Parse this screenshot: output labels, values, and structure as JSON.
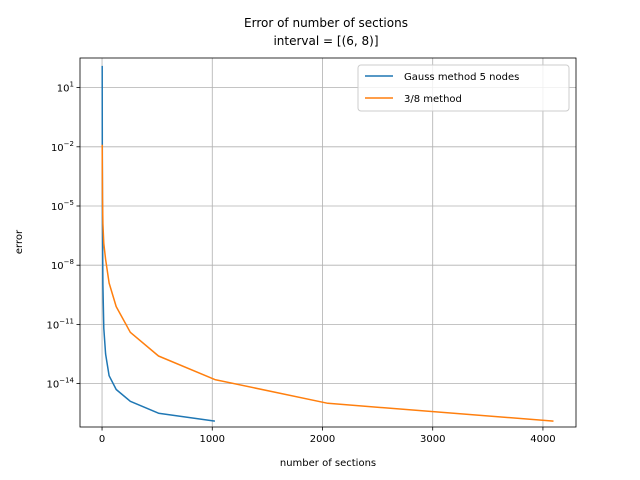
{
  "chart_data": {
    "type": "line",
    "title": "Error of number of sections",
    "subtitle": "interval = [(6, 8)]",
    "xlabel": "number of sections",
    "ylabel": "error",
    "xlim": [
      -200,
      4300
    ],
    "ylim_log10": [
      -16.2,
      2.5
    ],
    "yscale": "log",
    "grid": true,
    "legend_position": "top-right",
    "x_ticks": [
      0,
      1000,
      2000,
      3000,
      4000
    ],
    "x_tick_labels": [
      "0",
      "1000",
      "2000",
      "3000",
      "4000"
    ],
    "y_ticks_log10": [
      1,
      -2,
      -5,
      -8,
      -11,
      -14
    ],
    "y_tick_labels": [
      {
        "base": "10",
        "exp": "1"
      },
      {
        "base": "10",
        "exp": "−2"
      },
      {
        "base": "10",
        "exp": "−5"
      },
      {
        "base": "10",
        "exp": "−8"
      },
      {
        "base": "10",
        "exp": "−11"
      },
      {
        "base": "10",
        "exp": "−14"
      }
    ],
    "series": [
      {
        "name": "Gauss method 5 nodes",
        "color": "#1f77b4",
        "x": [
          1,
          2,
          4,
          8,
          16,
          32,
          64,
          128,
          256,
          512,
          1024
        ],
        "log10_y": [
          2.1,
          -2.0,
          -6.0,
          -9.0,
          -11.2,
          -12.5,
          -13.6,
          -14.3,
          -14.9,
          -15.5,
          -15.9
        ]
      },
      {
        "name": "3/8 method",
        "color": "#ff7f0e",
        "x": [
          1,
          2,
          4,
          8,
          16,
          32,
          64,
          128,
          256,
          512,
          1024,
          2048,
          4096
        ],
        "log10_y": [
          -1.9,
          -3.0,
          -4.6,
          -5.9,
          -6.9,
          -7.7,
          -8.9,
          -10.1,
          -11.4,
          -12.6,
          -13.8,
          -15.0,
          -15.9
        ]
      }
    ]
  }
}
